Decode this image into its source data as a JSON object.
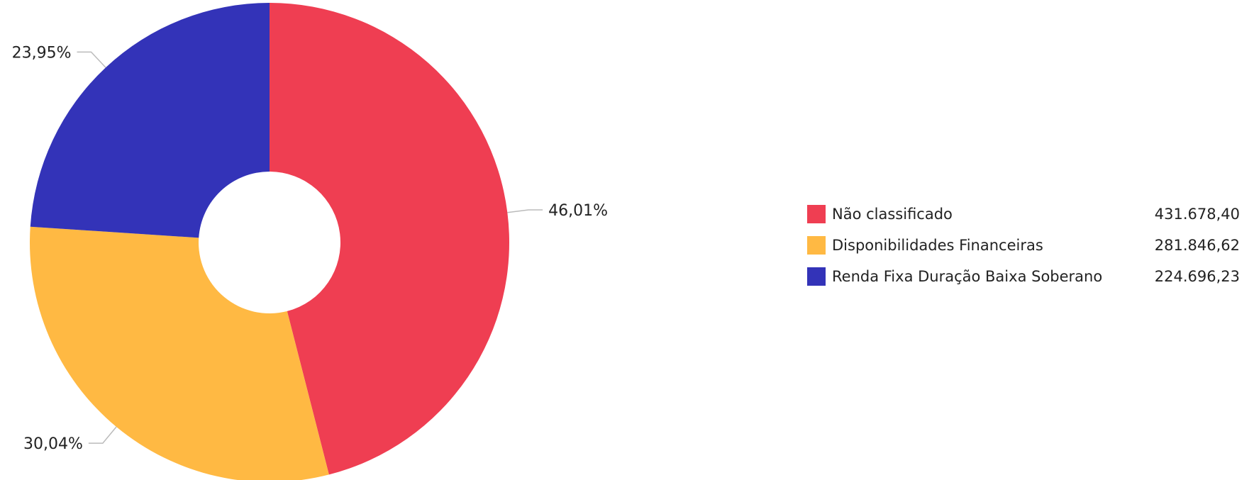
{
  "chart_data": {
    "type": "pie",
    "variant": "donut",
    "title": "",
    "categories": [
      "Não classificado",
      "Disponibilidades Financeiras",
      "Renda Fixa Duração Baixa Soberano"
    ],
    "values": [
      431678.4,
      281846.62,
      224696.23
    ],
    "value_labels": [
      "431.678,40",
      "281.846,62",
      "224.696,23"
    ],
    "percent_labels": [
      "46,01%",
      "30,04%",
      "23,95%"
    ],
    "percents": [
      46.01,
      30.04,
      23.95
    ],
    "colors": [
      "#EF3E52",
      "#FFB943",
      "#3333B8"
    ],
    "start_angle": "top, clockwise",
    "legend_position": "right"
  }
}
